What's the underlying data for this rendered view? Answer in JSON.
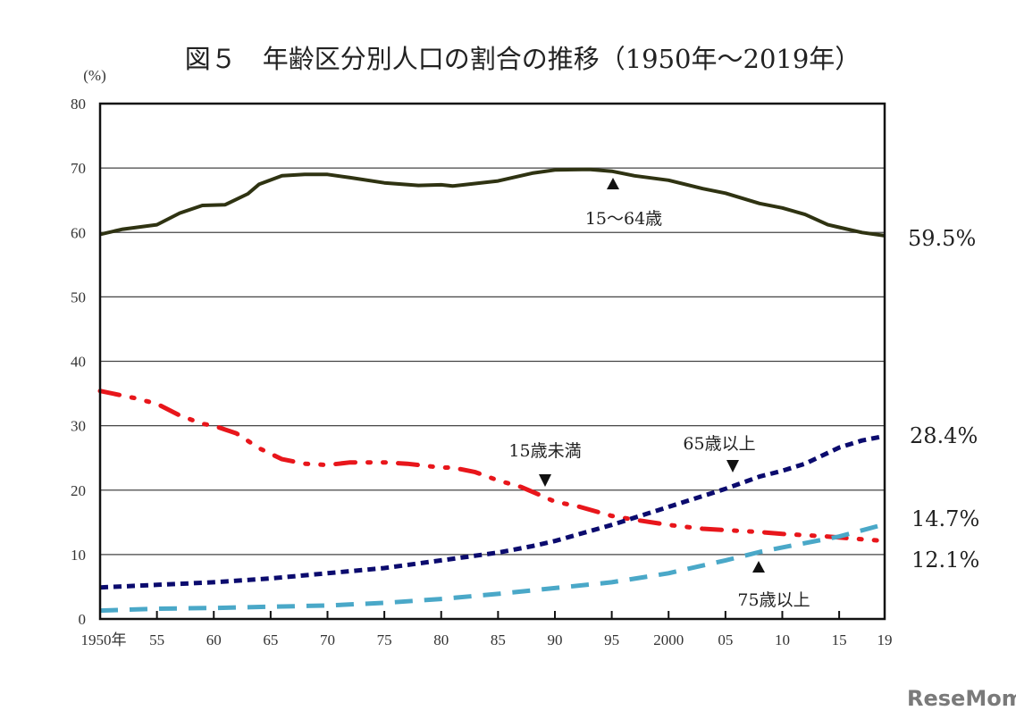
{
  "chart_data": {
    "type": "line",
    "title": "図５　年齢区分別人口の割合の推移（1950年～2019年）",
    "ylabel": "(%)",
    "xlabel": "",
    "ylim": [
      0,
      80
    ],
    "xlim": [
      1950,
      2019
    ],
    "grid": true,
    "yticks": [
      0,
      10,
      20,
      30,
      40,
      50,
      60,
      70,
      80
    ],
    "xticks": [
      {
        "year": 1950,
        "label": "1950年"
      },
      {
        "year": 1955,
        "label": "55"
      },
      {
        "year": 1960,
        "label": "60"
      },
      {
        "year": 1965,
        "label": "65"
      },
      {
        "year": 1970,
        "label": "70"
      },
      {
        "year": 1975,
        "label": "75"
      },
      {
        "year": 1980,
        "label": "80"
      },
      {
        "year": 1985,
        "label": "85"
      },
      {
        "year": 1990,
        "label": "90"
      },
      {
        "year": 1995,
        "label": "95"
      },
      {
        "year": 2000,
        "label": "2000"
      },
      {
        "year": 2005,
        "label": "05"
      },
      {
        "year": 2010,
        "label": "10"
      },
      {
        "year": 2015,
        "label": "15"
      },
      {
        "year": 2019,
        "label": "19"
      }
    ],
    "series": [
      {
        "name": "15～64歳",
        "color": "#2f3312",
        "style": "solid",
        "end_label": "59.5%",
        "x": [
          1950,
          1952,
          1955,
          1957,
          1959,
          1961,
          1963,
          1964,
          1966,
          1968,
          1970,
          1972,
          1975,
          1978,
          1980,
          1981,
          1985,
          1988,
          1990,
          1993,
          1995,
          1997,
          2000,
          2003,
          2005,
          2008,
          2010,
          2012,
          2014,
          2015,
          2017,
          2019
        ],
        "y": [
          59.7,
          60.5,
          61.2,
          63.0,
          64.2,
          64.3,
          66.0,
          67.5,
          68.8,
          69.0,
          69.0,
          68.5,
          67.7,
          67.3,
          67.4,
          67.2,
          68.0,
          69.2,
          69.7,
          69.8,
          69.5,
          68.8,
          68.1,
          66.8,
          66.1,
          64.5,
          63.8,
          62.8,
          61.2,
          60.8,
          60.0,
          59.5
        ]
      },
      {
        "name": "15歳未満",
        "color": "#e8161b",
        "style": "dash-dot-dot",
        "end_label": "12.1%",
        "x": [
          1950,
          1953,
          1955,
          1957,
          1959,
          1960,
          1962,
          1964,
          1966,
          1968,
          1970,
          1972,
          1975,
          1977,
          1980,
          1981,
          1983,
          1985,
          1987,
          1989,
          1990,
          1992,
          1995,
          1997,
          2000,
          2003,
          2005,
          2008,
          2010,
          2012,
          2014,
          2016,
          2019
        ],
        "y": [
          35.4,
          34.3,
          33.4,
          31.6,
          30.3,
          30.0,
          28.8,
          26.5,
          24.8,
          24.1,
          23.9,
          24.3,
          24.3,
          24.1,
          23.5,
          23.5,
          22.8,
          21.5,
          20.5,
          19.0,
          18.2,
          17.5,
          16.0,
          15.4,
          14.6,
          14.0,
          13.8,
          13.5,
          13.2,
          13.0,
          12.8,
          12.5,
          12.1
        ]
      },
      {
        "name": "65歳以上",
        "color": "#0b0b6e",
        "style": "short-dash",
        "end_label": "28.4%",
        "x": [
          1950,
          1955,
          1960,
          1965,
          1970,
          1975,
          1980,
          1985,
          1988,
          1990,
          1995,
          2000,
          2005,
          2008,
          2010,
          2012,
          2015,
          2017,
          2019
        ],
        "y": [
          4.9,
          5.3,
          5.7,
          6.3,
          7.1,
          7.9,
          9.1,
          10.3,
          11.3,
          12.1,
          14.6,
          17.4,
          20.2,
          22.1,
          23.0,
          24.1,
          26.6,
          27.7,
          28.4
        ]
      },
      {
        "name": "75歳以上",
        "color": "#4aa8c8",
        "style": "long-dash",
        "end_label": "14.7%",
        "x": [
          1950,
          1955,
          1960,
          1965,
          1970,
          1975,
          1980,
          1985,
          1990,
          1995,
          2000,
          2005,
          2008,
          2010,
          2015,
          2019
        ],
        "y": [
          1.3,
          1.6,
          1.7,
          1.9,
          2.1,
          2.5,
          3.1,
          3.9,
          4.8,
          5.7,
          7.1,
          9.1,
          10.4,
          11.1,
          12.8,
          14.7
        ]
      }
    ],
    "annotations": [
      {
        "text": "15～64歳",
        "arrow": "up"
      },
      {
        "text": "15歳未満",
        "arrow": "down"
      },
      {
        "text": "65歳以上",
        "arrow": "down"
      },
      {
        "text": "75歳以上",
        "arrow": "up"
      }
    ]
  },
  "watermark": "ReseMom"
}
